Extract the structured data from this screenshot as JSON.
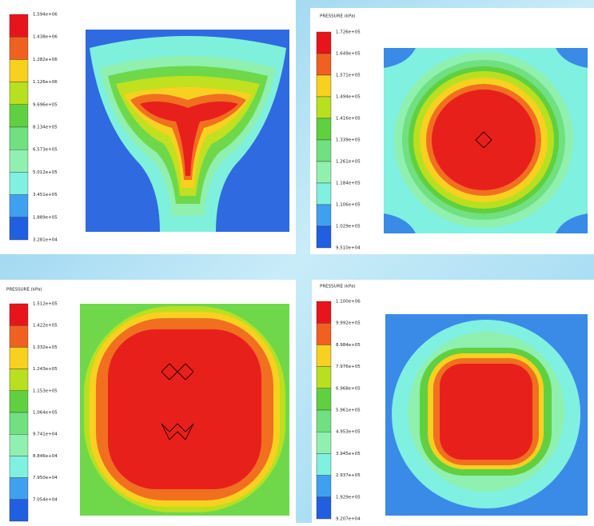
{
  "panels": [
    {
      "labels": [
        "1.594e+06",
        "1.438e+06",
        "1.282e+06",
        "1.126e+06",
        "9.696e+05",
        "8.134e+05",
        "6.573e+05",
        "5.012e+05",
        "3.451e+05",
        "1.889e+05",
        "3.281e+04"
      ]
    },
    {
      "title": "PRESSURE (kPa)",
      "labels": [
        "1.726e+05",
        "1.649e+05",
        "1.571e+05",
        "1.494e+05",
        "1.416e+05",
        "1.339e+05",
        "1.261e+05",
        "1.184e+05",
        "1.106e+05",
        "1.029e+05",
        "9.510e+04"
      ]
    },
    {
      "title": "PRESSURE (kPa)",
      "labels": [
        "1.512e+05",
        "1.422e+05",
        "1.332e+05",
        "1.243e+05",
        "1.153e+05",
        "1.064e+05",
        "9.741e+04",
        "8.846e+04",
        "7.950e+04",
        "7.054e+04",
        "6.159e+04"
      ]
    },
    {
      "title": "PRESSURE (kPa)",
      "labels": [
        "1.100e+06",
        "9.992e+05",
        "8.984e+05",
        "7.976e+05",
        "6.968e+05",
        "5.961e+05",
        "4.953e+05",
        "3.945e+05",
        "2.937e+05",
        "1.929e+05",
        "9.207e+04"
      ]
    }
  ]
}
